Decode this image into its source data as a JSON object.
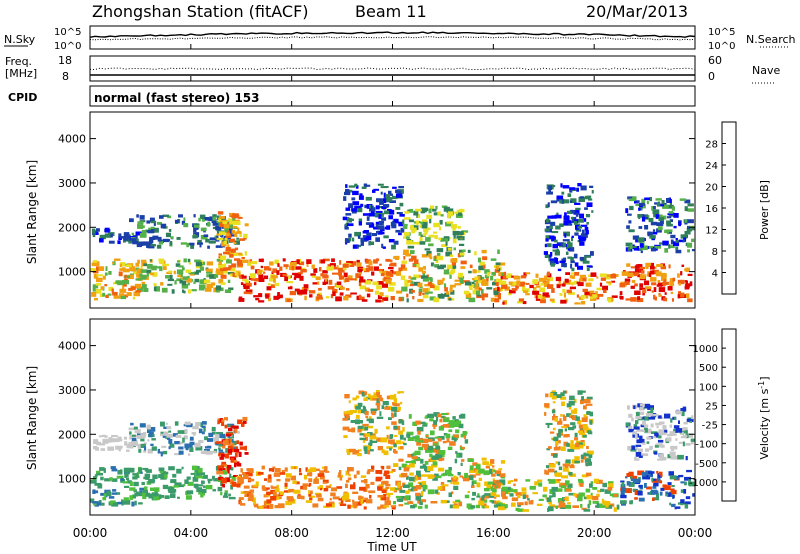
{
  "header": {
    "station": "Zhongshan Station (fitACF)",
    "beam": "Beam 11",
    "date": "20/Mar/2013"
  },
  "status_panels": {
    "nsky_label": "N.Sky",
    "nsky_ticks": [
      "10^5",
      "10^0"
    ],
    "nsearch_label": "N.Search",
    "nsearch_ticks": [
      "10^5",
      "10^0"
    ],
    "freq_label_1": "Freq.",
    "freq_label_2": "[MHz]",
    "freq_ticks": [
      "18",
      "8"
    ],
    "nave_label": "Nave",
    "nave_ticks": [
      "60",
      "0"
    ],
    "cpid_label": "CPID",
    "cpid_value": "normal (fast stereo) 153"
  },
  "chart_data": [
    {
      "type": "heatmap",
      "name": "power",
      "ylabel": "Slant Range [km]",
      "ylim": [
        180,
        4600
      ],
      "yticks": [
        "1000",
        "2000",
        "3000",
        "4000"
      ],
      "colorbar_label": "Power [dB]",
      "colorbar_ticks": [
        "28",
        "24",
        "20",
        "16",
        "12",
        "8",
        "4"
      ],
      "colorbar_colors": [
        "#0000ff",
        "#1a3fa8",
        "#2f7f5a",
        "#55b04a",
        "#e8e020",
        "#f0a010",
        "#f06010",
        "#e00000"
      ],
      "echo_regions": [
        {
          "t0": 0.0,
          "t1": 2.2,
          "r0": 350,
          "r1": 1300,
          "palette": [
            4,
            5,
            3,
            6,
            3,
            5
          ]
        },
        {
          "t0": 0.0,
          "t1": 2.1,
          "r0": 1600,
          "r1": 2000,
          "palette": [
            1,
            2,
            0,
            1
          ]
        },
        {
          "t0": 2.0,
          "t1": 5.8,
          "r0": 500,
          "r1": 1300,
          "palette": [
            3,
            4,
            2,
            5,
            3
          ]
        },
        {
          "t0": 1.5,
          "t1": 6.0,
          "r0": 1500,
          "r1": 2300,
          "palette": [
            2,
            1,
            3,
            1
          ]
        },
        {
          "t0": 5.0,
          "t1": 6.3,
          "r0": 800,
          "r1": 2400,
          "palette": [
            5,
            6,
            4
          ]
        },
        {
          "t0": 5.8,
          "t1": 12.2,
          "r0": 300,
          "r1": 1300,
          "palette": [
            6,
            7,
            5,
            6,
            4,
            7
          ]
        },
        {
          "t0": 10.0,
          "t1": 12.5,
          "r0": 1500,
          "r1": 3000,
          "palette": [
            1,
            0,
            2
          ]
        },
        {
          "t0": 12.0,
          "t1": 16.5,
          "r0": 300,
          "r1": 1500,
          "palette": [
            3,
            4,
            5,
            2,
            6
          ]
        },
        {
          "t0": 12.4,
          "t1": 15.0,
          "r0": 1400,
          "r1": 2500,
          "palette": [
            3,
            4,
            2
          ]
        },
        {
          "t0": 16.0,
          "t1": 21.0,
          "r0": 250,
          "r1": 1000,
          "palette": [
            5,
            6,
            4,
            7
          ]
        },
        {
          "t0": 18.0,
          "t1": 20.0,
          "r0": 1000,
          "r1": 3000,
          "palette": [
            1,
            2,
            0
          ]
        },
        {
          "t0": 21.0,
          "t1": 24.0,
          "r0": 300,
          "r1": 1200,
          "palette": [
            6,
            7,
            5,
            7
          ]
        },
        {
          "t0": 21.2,
          "t1": 24.0,
          "r0": 1400,
          "r1": 2700,
          "palette": [
            1,
            0,
            2,
            3
          ]
        }
      ]
    },
    {
      "type": "heatmap",
      "name": "velocity",
      "ylabel": "Slant Range [km]",
      "ylim": [
        180,
        4600
      ],
      "yticks": [
        "1000",
        "2000",
        "3000",
        "4000"
      ],
      "colorbar_label": "Velocity [m s",
      "colorbar_ticks": [
        "1000",
        "500",
        "100",
        "25",
        "-25",
        "-100",
        "-500",
        "-1000"
      ],
      "colorbar_colors": [
        "#1133cc",
        "#2a6fb0",
        "#3a9a6a",
        "#4fbf3c",
        "#c8c8c8",
        "#f0c000",
        "#f08020",
        "#f04000",
        "#e00000"
      ],
      "echo_regions": [
        {
          "t0": 0.0,
          "t1": 2.2,
          "r0": 350,
          "r1": 1300,
          "palette": [
            2,
            3,
            2,
            1
          ]
        },
        {
          "t0": 0.0,
          "t1": 2.1,
          "r0": 1600,
          "r1": 2000,
          "palette": [
            4,
            4,
            4
          ]
        },
        {
          "t0": 2.0,
          "t1": 5.8,
          "r0": 500,
          "r1": 1300,
          "palette": [
            2,
            3,
            2
          ]
        },
        {
          "t0": 1.5,
          "t1": 6.0,
          "r0": 1500,
          "r1": 2300,
          "palette": [
            2,
            1,
            4
          ]
        },
        {
          "t0": 5.0,
          "t1": 6.3,
          "r0": 800,
          "r1": 2400,
          "palette": [
            7,
            8,
            6
          ]
        },
        {
          "t0": 5.8,
          "t1": 12.2,
          "r0": 300,
          "r1": 1300,
          "palette": [
            6,
            5,
            7,
            6
          ]
        },
        {
          "t0": 10.0,
          "t1": 12.5,
          "r0": 1500,
          "r1": 3000,
          "palette": [
            6,
            5,
            2
          ]
        },
        {
          "t0": 12.0,
          "t1": 16.5,
          "r0": 300,
          "r1": 1500,
          "palette": [
            2,
            6,
            5,
            3
          ]
        },
        {
          "t0": 12.4,
          "t1": 15.0,
          "r0": 1400,
          "r1": 2500,
          "palette": [
            2,
            3,
            6
          ]
        },
        {
          "t0": 16.0,
          "t1": 21.0,
          "r0": 250,
          "r1": 1000,
          "palette": [
            2,
            3,
            6,
            5
          ]
        },
        {
          "t0": 18.0,
          "t1": 20.0,
          "r0": 1000,
          "r1": 3000,
          "palette": [
            5,
            6,
            2
          ]
        },
        {
          "t0": 21.0,
          "t1": 24.0,
          "r0": 300,
          "r1": 1200,
          "palette": [
            0,
            1,
            2,
            7
          ]
        },
        {
          "t0": 21.2,
          "t1": 24.0,
          "r0": 1400,
          "r1": 2700,
          "palette": [
            4,
            4,
            2,
            0
          ]
        }
      ]
    }
  ],
  "x_axis": {
    "label": "Time UT",
    "tick_labels": [
      "00:00",
      "04:00",
      "08:00",
      "12:00",
      "16:00",
      "20:00",
      "00:00"
    ],
    "range_hours": [
      0,
      24
    ]
  }
}
